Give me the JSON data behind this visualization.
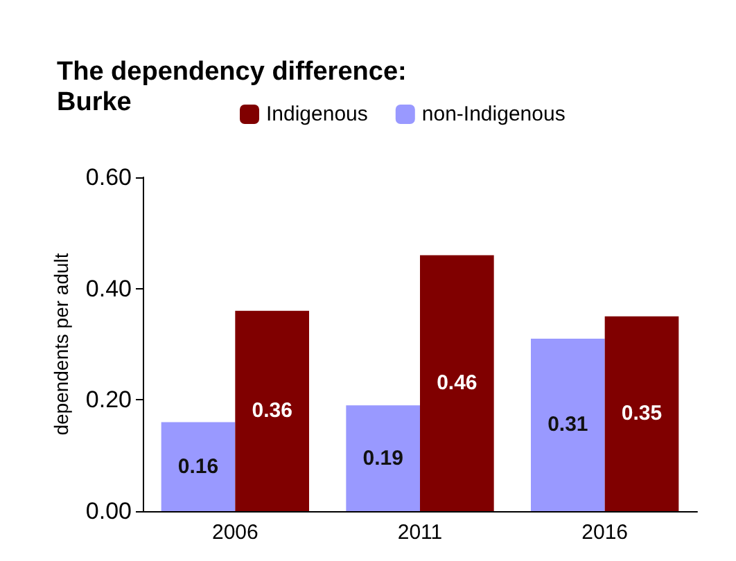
{
  "chart_data": {
    "type": "bar",
    "title": "The dependency difference:\nBurke",
    "ylabel": "dependents per adult",
    "categories": [
      "2006",
      "2011",
      "2016"
    ],
    "series": [
      {
        "name": "non-Indigenous",
        "color": "#9999ff",
        "values": [
          0.16,
          0.19,
          0.31
        ]
      },
      {
        "name": "Indigenous",
        "color": "#800000",
        "values": [
          0.36,
          0.46,
          0.35
        ]
      }
    ],
    "ylim": [
      0,
      0.6
    ],
    "yticks": [
      {
        "value": 0,
        "label": "0.00"
      },
      {
        "value": 0.2,
        "label": "0.20"
      },
      {
        "value": 0.4,
        "label": "0.40"
      },
      {
        "value": 0.6,
        "label": "0.60"
      }
    ],
    "data_labels": true,
    "grid": false,
    "legend": "top"
  }
}
